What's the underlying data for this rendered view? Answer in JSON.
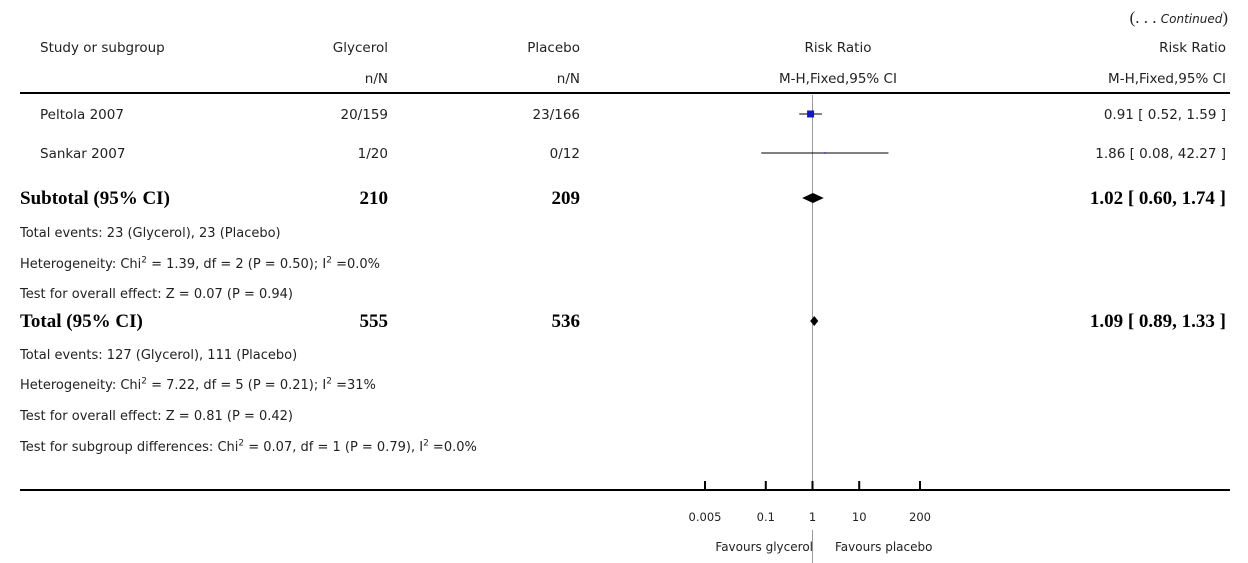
{
  "continued_label": "(. . . Continued)",
  "continued_paren_open": "(. . .",
  "continued_word": "Continued",
  "continued_paren_close": ")",
  "headers": {
    "study": "Study or subgroup",
    "group1": "Glycerol",
    "group2": "Placebo",
    "plot_title": "Risk Ratio",
    "estimate_title": "Risk Ratio",
    "group1_sub": "n/N",
    "group2_sub": "n/N",
    "plot_sub": "M-H,Fixed,95% CI",
    "estimate_sub": "M-H,Fixed,95% CI"
  },
  "studies": [
    {
      "name": "Peltola 2007",
      "group1": "20/159",
      "group2": "23/166",
      "estimate": "0.91 [ 0.52, 1.59 ]"
    },
    {
      "name": "Sankar 2007",
      "group1": "1/20",
      "group2": "0/12",
      "estimate": "1.86 [ 0.08, 42.27 ]"
    }
  ],
  "subtotal": {
    "label": "Subtotal (95% CI)",
    "group1": "210",
    "group2": "209",
    "estimate": "1.02 [ 0.60, 1.74 ]",
    "events": "Total events: 23 (Glycerol), 23 (Placebo)",
    "heterogeneity_a": "Heterogeneity: Chi",
    "heterogeneity_b": " = 1.39, df = 2 (P = 0.50); I",
    "heterogeneity_c": " =0.0%",
    "overall_effect": "Test for overall effect: Z = 0.07 (P = 0.94)"
  },
  "total": {
    "label": "Total (95% CI)",
    "group1": "555",
    "group2": "536",
    "estimate": "1.09 [ 0.89, 1.33 ]",
    "events": "Total events: 127 (Glycerol), 111 (Placebo)",
    "heterogeneity_a": "Heterogeneity: Chi",
    "heterogeneity_b": " = 7.22, df = 5 (P = 0.21); I",
    "heterogeneity_c": " =31%",
    "overall_effect": "Test for overall effect: Z = 0.81 (P = 0.42)",
    "subgroup_a": "Test for subgroup differences: Chi",
    "subgroup_b": " = 0.07, df = 1 (P = 0.79), I",
    "subgroup_c": " =0.0%"
  },
  "sup2": "2",
  "footer": {
    "favours_left": "Favours glycerol",
    "favours_right": "Favours placebo"
  },
  "chart_data": {
    "type": "forest",
    "scale": "log",
    "xlim": [
      0.005,
      200
    ],
    "ticks": [
      0.005,
      0.1,
      1,
      10,
      200
    ],
    "tick_labels": [
      "0.005",
      "0.1",
      "1",
      "10",
      "200"
    ],
    "null_value": 1,
    "studies": [
      {
        "name": "Peltola 2007",
        "rr": 0.91,
        "ci": [
          0.52,
          1.59
        ]
      },
      {
        "name": "Sankar 2007",
        "rr": 1.86,
        "ci": [
          0.08,
          42.27
        ]
      }
    ],
    "pooled": [
      {
        "name": "Subtotal (95% CI)",
        "rr": 1.02,
        "ci": [
          0.6,
          1.74
        ]
      },
      {
        "name": "Total (95% CI)",
        "rr": 1.09,
        "ci": [
          0.89,
          1.33
        ]
      }
    ],
    "marker_color": "#1515c8",
    "xlabel_left": "Favours glycerol",
    "xlabel_right": "Favours placebo"
  }
}
